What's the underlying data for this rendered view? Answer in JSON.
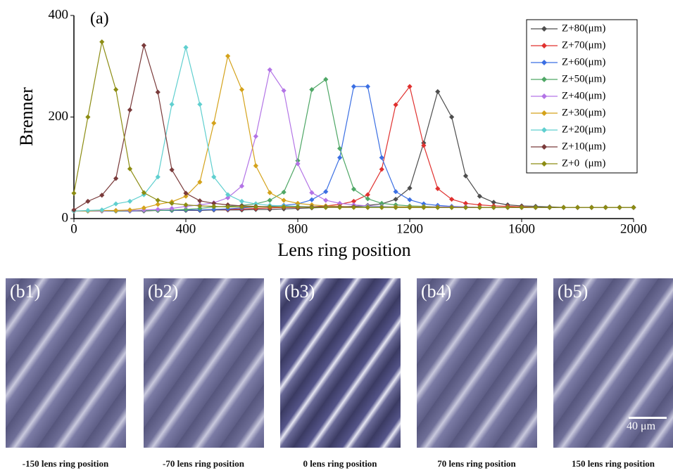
{
  "chart_data": {
    "type": "line",
    "annotation": "(a)",
    "x_label": "Lens ring position",
    "y_label": "Brenner",
    "x": [
      0,
      50,
      100,
      150,
      200,
      250,
      300,
      350,
      400,
      450,
      500,
      550,
      600,
      650,
      700,
      750,
      800,
      850,
      900,
      950,
      1000,
      1050,
      1100,
      1150,
      1200,
      1250,
      1300,
      1350,
      1400,
      1450,
      1500,
      1550,
      1600,
      1650,
      1700,
      1750,
      1800,
      1850,
      1900,
      1950,
      2000
    ],
    "xlim": [
      0,
      2000
    ],
    "xticks": [
      0,
      400,
      800,
      1200,
      1600,
      2000
    ],
    "ylim": [
      0,
      400
    ],
    "yticks": [
      0,
      200,
      400
    ],
    "legend": "upper right",
    "series": [
      {
        "name": "Z+80(μm)",
        "color": "#4d4d4d",
        "values": [
          15,
          15,
          15,
          15,
          15,
          15,
          16,
          16,
          16,
          16,
          17,
          17,
          17,
          18,
          18,
          19,
          20,
          21,
          22,
          23,
          24,
          26,
          29,
          38,
          60,
          149,
          250,
          200,
          84,
          44,
          32,
          27,
          25,
          24,
          23,
          22,
          22,
          22,
          22,
          22,
          22
        ]
      },
      {
        "name": "Z+70(μm)",
        "color": "#e0312f",
        "values": [
          15,
          15,
          15,
          15,
          15,
          16,
          16,
          16,
          17,
          17,
          18,
          18,
          19,
          20,
          21,
          22,
          22,
          23,
          25,
          28,
          34,
          47,
          97,
          224,
          260,
          144,
          59,
          38,
          30,
          27,
          25,
          24,
          23,
          22,
          22,
          22,
          22,
          22,
          22,
          22,
          22
        ]
      },
      {
        "name": "Z+60(μm)",
        "color": "#3b6fe3",
        "values": [
          15,
          15,
          15,
          15,
          15,
          16,
          16,
          16,
          17,
          17,
          18,
          19,
          21,
          23,
          24,
          26,
          29,
          37,
          53,
          120,
          260,
          260,
          120,
          53,
          37,
          29,
          26,
          24,
          23,
          22,
          22,
          22,
          22,
          22,
          22,
          22,
          22,
          22,
          22,
          22,
          22
        ]
      },
      {
        "name": "Z+50(μm)",
        "color": "#4fa766",
        "values": [
          15,
          15,
          15,
          15,
          16,
          16,
          16,
          17,
          18,
          20,
          23,
          24,
          26,
          29,
          36,
          52,
          114,
          254,
          274,
          138,
          58,
          39,
          30,
          27,
          25,
          24,
          23,
          22,
          22,
          22,
          22,
          22,
          22,
          22,
          22,
          22,
          22,
          22,
          22,
          22,
          22
        ]
      },
      {
        "name": "Z+40(μm)",
        "color": "#b374e6",
        "values": [
          15,
          15,
          15,
          16,
          16,
          17,
          18,
          20,
          24,
          27,
          31,
          41,
          64,
          162,
          293,
          252,
          108,
          51,
          36,
          30,
          27,
          25,
          24,
          23,
          23,
          23,
          23,
          23,
          23,
          22,
          22,
          22,
          22,
          22,
          22,
          22,
          22,
          22,
          22,
          22,
          22
        ]
      },
      {
        "name": "Z+30(μm)",
        "color": "#d4a21a",
        "values": [
          15,
          15,
          16,
          16,
          17,
          21,
          28,
          33,
          44,
          72,
          188,
          320,
          254,
          104,
          51,
          36,
          30,
          27,
          25,
          24,
          23,
          23,
          23,
          23,
          23,
          23,
          22,
          22,
          22,
          22,
          22,
          22,
          22,
          22,
          22,
          22,
          22,
          22,
          22,
          22,
          22
        ]
      },
      {
        "name": "Z+20(μm)",
        "color": "#5fcfcf",
        "values": [
          15,
          16,
          17,
          29,
          34,
          47,
          82,
          225,
          337,
          225,
          82,
          47,
          34,
          29,
          26,
          25,
          24,
          23,
          23,
          23,
          23,
          23,
          23,
          22,
          22,
          22,
          22,
          22,
          22,
          22,
          22,
          22,
          22,
          22,
          22,
          22,
          22,
          22,
          22,
          22,
          22
        ]
      },
      {
        "name": "Z+10(μm)",
        "color": "#7a3b3b",
        "values": [
          17,
          34,
          46,
          79,
          214,
          341,
          249,
          96,
          50,
          35,
          30,
          27,
          25,
          24,
          23,
          23,
          23,
          23,
          23,
          23,
          23,
          22,
          22,
          22,
          22,
          22,
          22,
          22,
          22,
          22,
          22,
          22,
          22,
          22,
          22,
          22,
          22,
          22,
          22,
          22,
          22
        ]
      },
      {
        "name": "Z+0  (μm)",
        "color": "#8c8c12",
        "values": [
          50,
          200,
          348,
          254,
          98,
          51,
          36,
          30,
          27,
          25,
          24,
          23,
          23,
          23,
          23,
          23,
          23,
          22,
          22,
          22,
          22,
          22,
          22,
          22,
          22,
          22,
          22,
          22,
          22,
          22,
          22,
          22,
          22,
          22,
          22,
          22,
          22,
          22,
          22,
          22,
          22
        ]
      }
    ]
  },
  "panels": [
    {
      "label": "(b1)",
      "caption": "-150 lens ring position"
    },
    {
      "label": "(b2)",
      "caption": "-70 lens ring position"
    },
    {
      "label": "(b3)",
      "caption": "0 lens ring position"
    },
    {
      "label": "(b4)",
      "caption": "70 lens ring position"
    },
    {
      "label": "(b5)",
      "caption": "150 lens ring position"
    }
  ],
  "scale_bar": "40 μm"
}
